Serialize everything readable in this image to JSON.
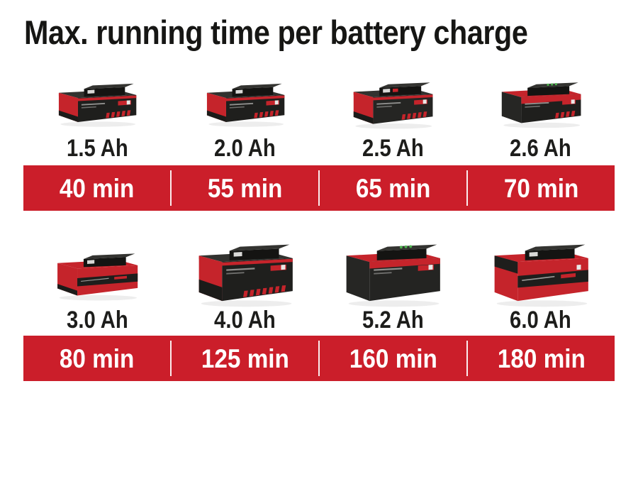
{
  "title": "Max. running time per battery charge",
  "colors": {
    "band_red": "#cb1e2a",
    "battery_red": "#c5242b",
    "battery_black": "#1f1f1d",
    "battery_top_gray": "#32322f",
    "led_green": "#4db14e",
    "text_dark": "#1d1d1b",
    "text_white": "#ffffff"
  },
  "rows": [
    {
      "items": [
        {
          "capacity": "1.5 Ah",
          "runtime": "40 min",
          "icon": "battery-pack-icon",
          "variant": "compact-dark"
        },
        {
          "capacity": "2.0 Ah",
          "runtime": "55 min",
          "icon": "battery-pack-icon",
          "variant": "compact-dark"
        },
        {
          "capacity": "2.5 Ah",
          "runtime": "65 min",
          "icon": "battery-pack-icon",
          "variant": "compact-dark-button"
        },
        {
          "capacity": "2.6 Ah",
          "runtime": "70 min",
          "icon": "battery-pack-icon",
          "variant": "compact-red-top"
        }
      ]
    },
    {
      "items": [
        {
          "capacity": "3.0 Ah",
          "runtime": "80 min",
          "icon": "battery-pack-icon",
          "variant": "mid-red"
        },
        {
          "capacity": "4.0 Ah",
          "runtime": "125 min",
          "icon": "battery-pack-icon",
          "variant": "large-dark"
        },
        {
          "capacity": "5.2 Ah",
          "runtime": "160 min",
          "icon": "battery-pack-icon",
          "variant": "large-red-top"
        },
        {
          "capacity": "6.0 Ah",
          "runtime": "180 min",
          "icon": "battery-pack-icon",
          "variant": "large-red"
        }
      ]
    }
  ],
  "chart_data": {
    "type": "table",
    "title": "Max. running time per battery charge",
    "categories": [
      "1.5 Ah",
      "2.0 Ah",
      "2.5 Ah",
      "2.6 Ah",
      "3.0 Ah",
      "4.0 Ah",
      "5.2 Ah",
      "6.0 Ah"
    ],
    "values": [
      40,
      55,
      65,
      70,
      80,
      125,
      160,
      180
    ],
    "value_labels": [
      "40 min",
      "55 min",
      "65 min",
      "70 min",
      "80 min",
      "125 min",
      "160 min",
      "180 min"
    ],
    "unit": "min",
    "xlabel": "",
    "ylabel": "",
    "legend": [],
    "layout": "two rows of four battery capacities, runtimes shown in red value bands"
  }
}
